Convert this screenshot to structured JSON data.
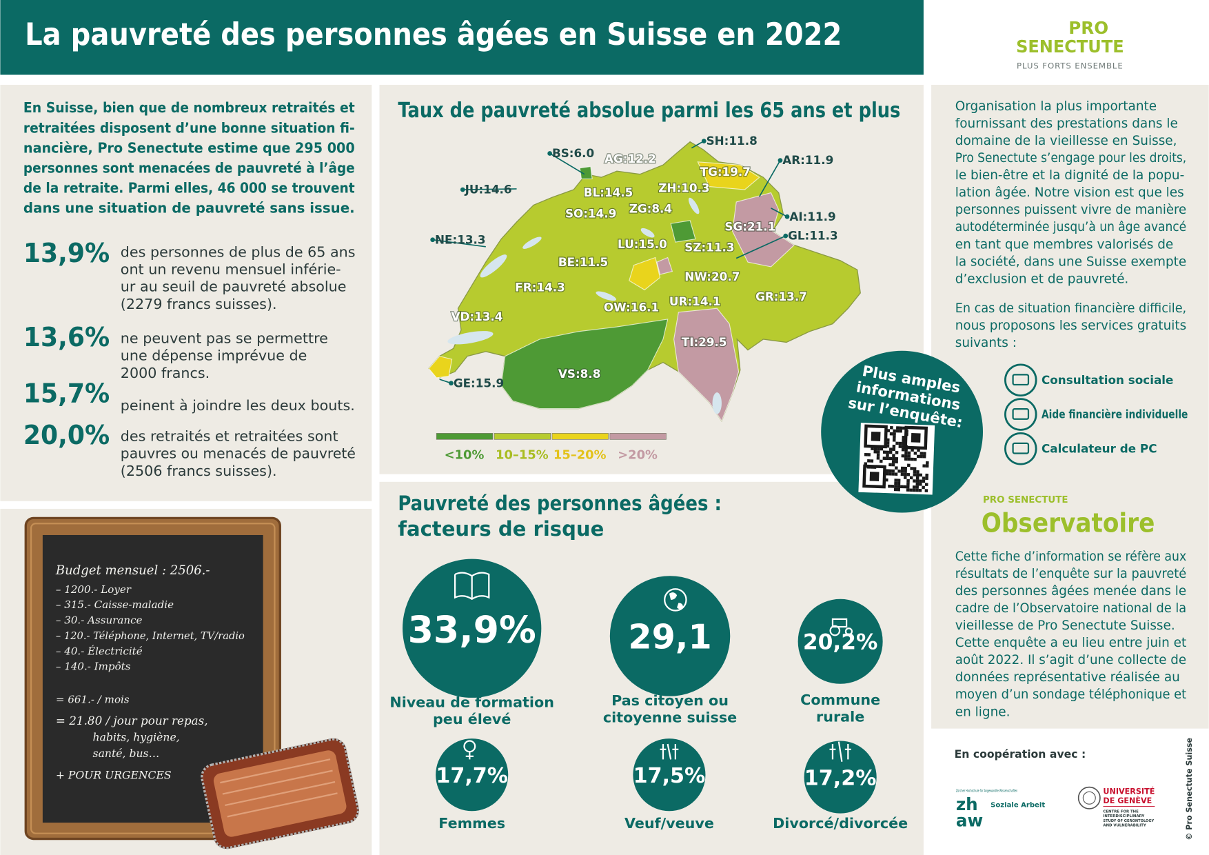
{
  "header": {
    "title": "La pauvreté des personnes âgées en Suisse en 2022",
    "logo": {
      "name_lines": [
        "PRO",
        "SENECTUTE"
      ],
      "tagline": "PLUS FORTS ENSEMBLE"
    }
  },
  "intro": {
    "lines": [
      "En Suisse, bien que de nombreux retraités et",
      "retraitées disposent d’une bonne situation fi-",
      "nancière, Pro Senectute estime que 295 000",
      "personnes sont menacées de pauvreté à l’âge",
      "de la retraite. Parmi elles, 46 000 se trouvent",
      "dans une situation de pauvreté sans issue."
    ]
  },
  "stats": [
    {
      "value": "13,9%",
      "lines": [
        "des personnes de plus de 65 ans",
        "ont un revenu mensuel inférie-",
        "ur au seuil de pauvreté absolue",
        "(2279 francs suisses)."
      ]
    },
    {
      "value": "13,6%",
      "lines": [
        "ne peuvent pas se permettre",
        "une dépense imprévue de",
        "2000 francs."
      ]
    },
    {
      "value": "15,7%",
      "lines": [
        "peinent à joindre les deux bouts."
      ]
    },
    {
      "value": "20,0%",
      "lines": [
        "des retraités et retraitées sont",
        "pauvres ou menacés de pauvreté",
        "(2506 francs suisses)."
      ]
    }
  ],
  "map": {
    "title": "Taux de pauvreté absolue parmi les 65 ans et plus",
    "cantons": [
      {
        "label": "SH:11.8"
      },
      {
        "label": "AR:11.9"
      },
      {
        "label": "BS:6.0"
      },
      {
        "label": "AG:12.2"
      },
      {
        "label": "TG:19.7"
      },
      {
        "label": "JU:14.6"
      },
      {
        "label": "BL:14.5"
      },
      {
        "label": "ZH:10.3"
      },
      {
        "label": "SO:14.9"
      },
      {
        "label": "ZG:8.4"
      },
      {
        "label": "AI:11.9"
      },
      {
        "label": "SG:21.1"
      },
      {
        "label": "GL:11.3"
      },
      {
        "label": "NE:13.3"
      },
      {
        "label": "LU:15.0"
      },
      {
        "label": "SZ:11.3"
      },
      {
        "label": "BE:11.5"
      },
      {
        "label": "NW:20.7"
      },
      {
        "label": "FR:14.3"
      },
      {
        "label": "UR:14.1"
      },
      {
        "label": "OW:16.1"
      },
      {
        "label": "GR:13.7"
      },
      {
        "label": "VD:13.4"
      },
      {
        "label": "TI:29.5"
      },
      {
        "label": "VS:8.8"
      },
      {
        "label": "GE:15.9"
      }
    ],
    "legend": [
      {
        "label": "<10%",
        "color": "#4e9a35"
      },
      {
        "label": "10–15%",
        "color": "#b7cb2f"
      },
      {
        "label": "15–20%",
        "color": "#e9d41c"
      },
      {
        "label": ">20%",
        "color": "#c39aa3"
      }
    ],
    "qr": {
      "lines": [
        "Plus amples",
        "informations",
        "sur l’enquête:"
      ]
    }
  },
  "budget": {
    "title": "Budget mensuel : 2506.-",
    "items": [
      "– 1200.- Loyer",
      "– 315.- Caisse-maladie",
      "– 30.- Assurance",
      "– 120.- Téléphone, Internet, TV/radio",
      "– 40.- Électricité",
      "– 140.- Impôts"
    ],
    "total": "= 661.- / mois",
    "per_day_lines": [
      "= 21.80 / jour pour repas,",
      "habits, hygiène,",
      "santé, bus…"
    ],
    "emergency": "+ POUR URGENCES"
  },
  "risks": {
    "title_lines": [
      "Pauvreté des personnes âgées :",
      "facteurs de risque"
    ],
    "items": [
      {
        "value": "33,9%",
        "label_lines": [
          "Niveau de formation",
          "peu élevé"
        ]
      },
      {
        "value": "29,1",
        "label_lines": [
          "Pas citoyen ou",
          "citoyenne suisse"
        ]
      },
      {
        "value": "20,2%",
        "label_lines": [
          "Commune",
          "rurale"
        ]
      },
      {
        "value": "17,7%",
        "label_lines": [
          "Femmes"
        ]
      },
      {
        "value": "17,5%",
        "label_lines": [
          "Veuf/veuve"
        ]
      },
      {
        "value": "17,2%",
        "label_lines": [
          "Divorcé/divorcée"
        ]
      }
    ]
  },
  "about": {
    "paragraph1": [
      "Organisation la plus importante",
      "fournissant des prestations dans le",
      "domaine de la vieillesse en Suisse,",
      "Pro Senectute s’engage pour les droits,",
      "le bien-être et la dignité de la popu-",
      "lation âgée. Notre vision est que les",
      "personnes puissent vivre de manière",
      "autodéterminée jusqu’à un âge avancé",
      "en tant que membres valorisés de",
      "la société, dans une Suisse exempte",
      "d’exclusion et de pauvreté."
    ],
    "paragraph2": [
      "En cas de situation financière difficile,",
      "nous proposons les services gratuits",
      "suivants :"
    ],
    "services": [
      "Consultation sociale",
      "Aide financière individuelle",
      "Calculateur de PC"
    ],
    "observatoire": {
      "brand": "PRO SENECTUTE",
      "title": "Observatoire"
    },
    "paragraph3": [
      "Cette fiche d’information se réfère aux",
      "résultats de l’enquête sur la pauvreté",
      "des personnes âgées menée dans le",
      "cadre de l’Observatoire national de la",
      "vieillesse de Pro Senectute Suisse.",
      "Cette enquête a eu lieu entre juin et",
      "août 2022. Il s’agit d’une collecte de",
      "données représentative réalisée au",
      "moyen d’un sondage téléphonique et",
      "en ligne."
    ]
  },
  "cooperation": {
    "title": "En coopération avec :",
    "zhaw": {
      "school": "Zürcher Hochschule für Angewandte Wissenschaften",
      "wordmark_lines": [
        "zh",
        "aw"
      ],
      "unit": "Soziale Arbeit"
    },
    "unige": {
      "name_lines": [
        "UNIVERSITÉ",
        "DE GENÈVE"
      ],
      "centre_lines": [
        "CENTRE FOR THE",
        "INTERDISCIPLINARY",
        "STUDY OF GERONTOLOGY",
        "AND VULNERABILITY"
      ]
    }
  },
  "copyright": "© Pro Senectute Suisse"
}
